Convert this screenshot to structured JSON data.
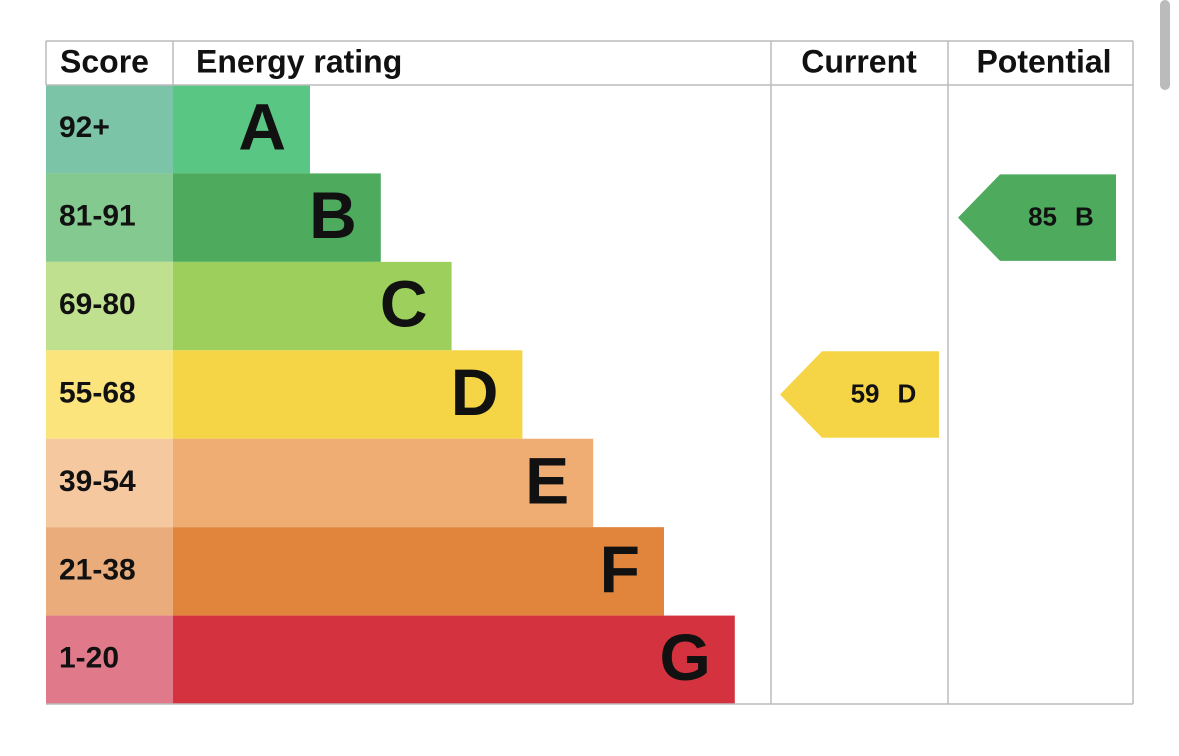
{
  "header": {
    "score": "Score",
    "rating": "Energy rating",
    "current": "Current",
    "potential": "Potential"
  },
  "bands": [
    {
      "score": "92+",
      "letter": "A",
      "color": "#5ac683",
      "score_color": "#7cc4a8"
    },
    {
      "score": "81-91",
      "letter": "B",
      "color": "#4eab5e",
      "score_color": "#84c98f"
    },
    {
      "score": "69-80",
      "letter": "C",
      "color": "#9ccf5c",
      "score_color": "#bfe08f"
    },
    {
      "score": "55-68",
      "letter": "D",
      "color": "#f5d546",
      "score_color": "#fbe47c"
    },
    {
      "score": "39-54",
      "letter": "E",
      "color": "#efad73",
      "score_color": "#f5c8a0"
    },
    {
      "score": "21-38",
      "letter": "F",
      "color": "#e0853b",
      "score_color": "#e9ac7a"
    },
    {
      "score": "1-20",
      "letter": "G",
      "color": "#d5323f",
      "score_color": "#e07a8a"
    }
  ],
  "current": {
    "value": 59,
    "letter": "D"
  },
  "potential": {
    "value": 85,
    "letter": "B"
  }
}
